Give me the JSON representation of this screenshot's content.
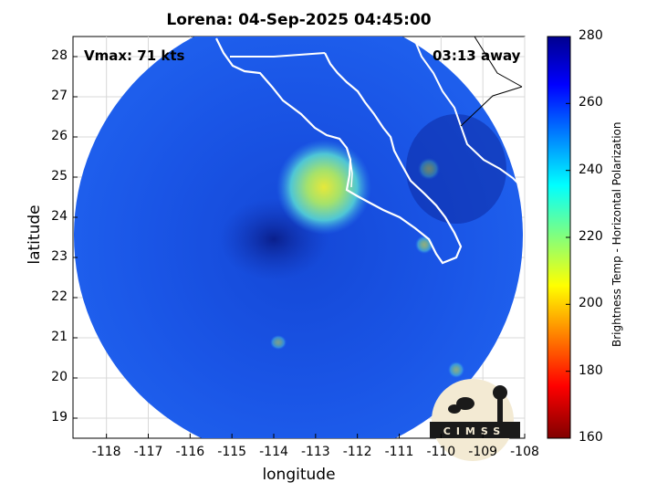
{
  "map": {
    "title": "Lorena: 04-Sep-2025 04:45:00",
    "vmax_label": "Vmax: 71 kts",
    "time_away_label": "03:13 away",
    "x_axis_label": "longitude",
    "y_axis_label": "latitude",
    "x_ticks": [
      "-118",
      "-117",
      "-116",
      "-115",
      "-114",
      "-113",
      "-112",
      "-111",
      "-110",
      "-109",
      "-108"
    ],
    "y_ticks": [
      "28",
      "27",
      "26",
      "25",
      "24",
      "23",
      "22",
      "21",
      "20",
      "19"
    ],
    "lon_range": [
      -118.8,
      -108
    ],
    "lat_range": [
      18.5,
      28.5
    ],
    "grid": true,
    "storm_center": {
      "lon": -113.9,
      "lat": 23.6
    }
  },
  "colorbar": {
    "label": "Brightness Temp - Horizontal Polarization",
    "ticks": [
      "280",
      "260",
      "240",
      "220",
      "200",
      "180",
      "160"
    ],
    "range": [
      160,
      280
    ],
    "colormap": "jet-reversed"
  },
  "logo": {
    "text": "CIMSS"
  }
}
